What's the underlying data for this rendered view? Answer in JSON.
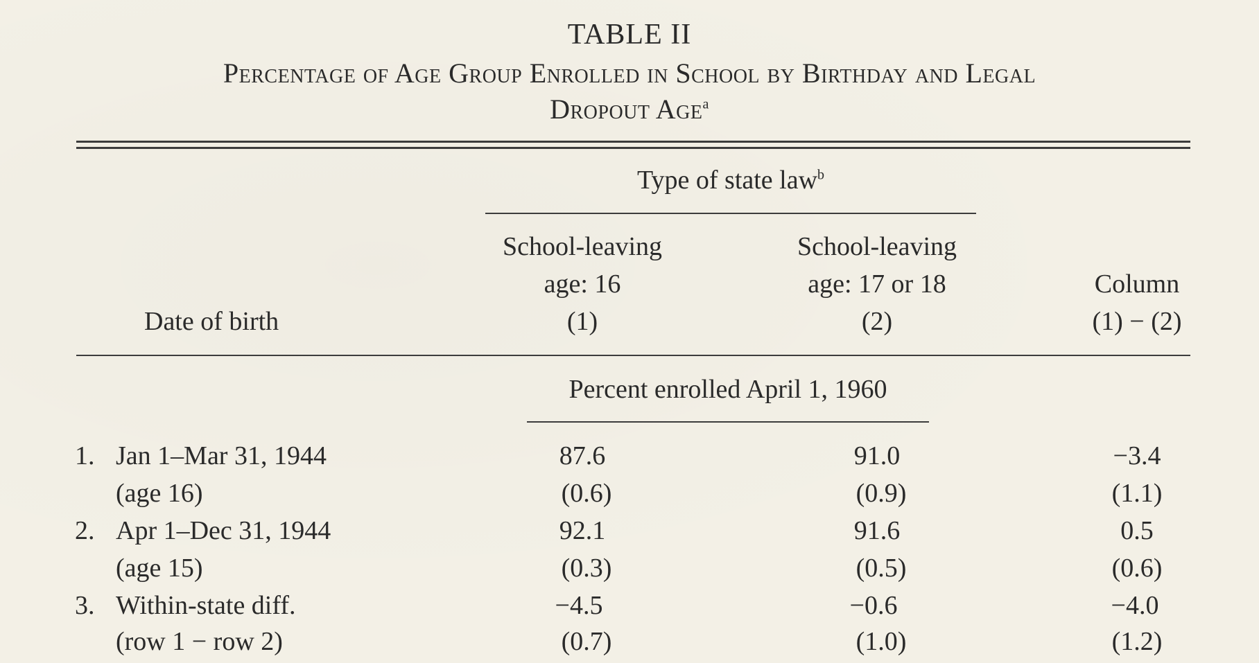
{
  "table": {
    "number": "TABLE II",
    "title_line1": "Percentage of Age Group Enrolled in School by Birthday and Legal",
    "title_line2": "Dropout Age",
    "title_note": "a",
    "spanner": "Type of state law",
    "spanner_note": "b",
    "stub_header": "Date of birth",
    "columns": [
      {
        "line1": "School-leaving",
        "line2": "age: 16",
        "line3": "(1)"
      },
      {
        "line1": "School-leaving",
        "line2": "age: 17 or 18",
        "line3": "(2)"
      },
      {
        "line1": "",
        "line2": "Column",
        "line3": "(1) − (2)"
      }
    ],
    "subheader": "Percent enrolled April 1, 1960",
    "rows": [
      {
        "num": "1.",
        "label": "Jan 1–Mar 31, 1944",
        "sublabel": "(age 16)",
        "values": [
          "87.6",
          "91.0",
          "−3.4"
        ],
        "se": [
          "(0.6)",
          "(0.9)",
          "(1.1)"
        ]
      },
      {
        "num": "2.",
        "label": "Apr 1–Dec 31, 1944",
        "sublabel": "(age 15)",
        "values": [
          "92.1",
          "91.6",
          "0.5"
        ],
        "se": [
          "(0.3)",
          "(0.5)",
          "(0.6)"
        ]
      },
      {
        "num": "3.",
        "label": "Within-state diff.",
        "sublabel": "(row 1 − row 2)",
        "values": [
          "−4.5",
          "−0.6",
          "−4.0"
        ],
        "se": [
          "(0.7)",
          "(1.0)",
          "(1.2)"
        ]
      }
    ]
  }
}
